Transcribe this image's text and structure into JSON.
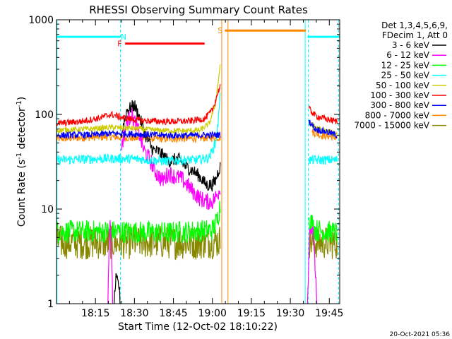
{
  "chart_data": {
    "type": "line",
    "title": "RHESSI Observing Summary Count Rates",
    "xlabel": "Start Time (12-Oct-02 18:10:22)",
    "ylabel_main": "Count Rate (s",
    "ylabel_sup": "-1",
    "ylabel_tail": " detector",
    "ylabel_close": ")",
    "yscale": "log",
    "ylim": [
      1,
      1000
    ],
    "xlim_minutes": [
      18.0,
      19.8167
    ],
    "x_ticks": [
      {
        "label": "18:15",
        "value": 18.25
      },
      {
        "label": "18:30",
        "value": 18.5
      },
      {
        "label": "18:45",
        "value": 18.75
      },
      {
        "label": "19:00",
        "value": 19.0
      },
      {
        "label": "19:15",
        "value": 19.25
      },
      {
        "label": "19:30",
        "value": 19.5
      },
      {
        "label": "19:45",
        "value": 19.75
      }
    ],
    "y_ticks": [
      {
        "label": "1",
        "value": 1
      },
      {
        "label": "10",
        "value": 10
      },
      {
        "label": "100",
        "value": 100
      },
      {
        "label": "1000",
        "value": 1000
      }
    ],
    "legend": {
      "header1": "Det 1,3,4,5,6,9,",
      "header2": "FDecim 1, Att 0",
      "entries": [
        {
          "label": "3 - 6 keV",
          "color": "#000000"
        },
        {
          "label": "6 - 12 keV",
          "color": "#ff00ff"
        },
        {
          "label": "12 - 25 keV",
          "color": "#00ff00"
        },
        {
          "label": "25 - 50 keV",
          "color": "#00ffff"
        },
        {
          "label": "50 - 100 keV",
          "color": "#cccc00"
        },
        {
          "label": "100 - 300 keV",
          "color": "#ff0000"
        },
        {
          "label": "300 - 800 keV",
          "color": "#0000ff"
        },
        {
          "label": "800 - 7000 keV",
          "color": "#ff8800"
        },
        {
          "label": "7000 - 15000 keV",
          "color": "#888800"
        }
      ]
    },
    "flags": [
      {
        "label": "N",
        "color": "#00ffff",
        "start": 18.0,
        "end": 18.41,
        "level": 660,
        "label_at": 18.43
      },
      {
        "label": "N",
        "color": "#00ffff",
        "start": 19.61,
        "end": 19.82,
        "level": 660,
        "label_at": null
      },
      {
        "label": "F",
        "color": "#ff0000",
        "start": 18.44,
        "end": 18.95,
        "level": 560,
        "label_at": 18.405
      },
      {
        "label": "S",
        "color": "#ff8800",
        "start": 19.08,
        "end": 19.6,
        "level": 770,
        "label_at": 19.05
      }
    ],
    "markers": [
      {
        "value": 18.41,
        "color": "#00ffff",
        "dash": true
      },
      {
        "value": 18.003,
        "color": "#00ffff",
        "dash": false
      },
      {
        "value": 19.06,
        "color": "#ff8800",
        "dash": false
      },
      {
        "value": 19.1,
        "color": "#ff8800",
        "dash": false
      },
      {
        "value": 19.595,
        "color": "#00ffff",
        "dash": false
      },
      {
        "value": 19.615,
        "color": "#00ffff",
        "dash": true
      },
      {
        "value": 19.81,
        "color": "#00ffff",
        "dash": true
      }
    ],
    "series": [
      {
        "name": "800 - 7000 keV",
        "color": "#ff8800",
        "noise": 0.04,
        "segments": [
          [
            [
              18.0,
              55
            ],
            [
              18.2,
              57
            ],
            [
              18.35,
              58
            ],
            [
              18.5,
              56
            ],
            [
              18.7,
              55
            ],
            [
              18.9,
              56
            ],
            [
              19.05,
              57
            ]
          ],
          [
            [
              19.64,
              65
            ],
            [
              19.7,
              60
            ],
            [
              19.8,
              57
            ]
          ]
        ]
      },
      {
        "name": "7000 - 15000 keV",
        "color": "#888800",
        "noise": 0.18,
        "segments": [
          [
            [
              18.0,
              4.5
            ],
            [
              18.3,
              4.4
            ],
            [
              18.6,
              4.5
            ],
            [
              18.9,
              4.4
            ],
            [
              19.05,
              4.6
            ]
          ],
          [
            [
              19.62,
              4.5
            ],
            [
              19.8,
              4.4
            ]
          ]
        ]
      },
      {
        "name": "12 - 25 keV",
        "color": "#00ff00",
        "noise": 0.12,
        "segments": [
          [
            [
              18.0,
              5.8
            ],
            [
              18.4,
              5.8
            ],
            [
              18.7,
              5.6
            ],
            [
              19.0,
              6.0
            ],
            [
              19.03,
              7.5
            ],
            [
              19.05,
              11
            ]
          ],
          [
            [
              19.62,
              8
            ],
            [
              19.66,
              6
            ],
            [
              19.8,
              5.6
            ]
          ]
        ]
      },
      {
        "name": "3 - 6 keV",
        "color": "#000000",
        "noise": 0.07,
        "segments": [
          [
            [
              18.37,
              1.0
            ],
            [
              18.38,
              1.8
            ],
            [
              18.4,
              1.6
            ],
            [
              18.41,
              1.0
            ]
          ],
          [
            [
              18.415,
              60
            ],
            [
              18.45,
              110
            ],
            [
              18.5,
              125
            ],
            [
              18.53,
              95
            ],
            [
              18.58,
              55
            ],
            [
              18.62,
              42
            ],
            [
              18.66,
              40
            ],
            [
              18.72,
              32
            ],
            [
              18.78,
              34
            ],
            [
              18.83,
              28
            ],
            [
              18.88,
              25
            ],
            [
              18.92,
              22
            ],
            [
              18.96,
              18
            ],
            [
              19.0,
              18
            ],
            [
              19.02,
              20
            ],
            [
              19.04,
              26
            ],
            [
              19.05,
              28
            ]
          ]
        ]
      },
      {
        "name": "6 - 12 keV",
        "color": "#ff00ff",
        "noise": 0.09,
        "segments": [
          [
            [
              18.33,
              1.0
            ],
            [
              18.34,
              6.5
            ],
            [
              18.35,
              6.5
            ],
            [
              18.36,
              1.0
            ]
          ],
          [
            [
              18.415,
              45
            ],
            [
              18.45,
              80
            ],
            [
              18.48,
              100
            ],
            [
              18.52,
              72
            ],
            [
              18.56,
              42
            ],
            [
              18.6,
              33
            ],
            [
              18.64,
              24
            ],
            [
              18.68,
              20
            ],
            [
              18.72,
              24
            ],
            [
              18.76,
              22
            ],
            [
              18.8,
              21
            ],
            [
              18.84,
              18
            ],
            [
              18.88,
              15
            ],
            [
              18.92,
              13
            ],
            [
              18.96,
              12
            ],
            [
              19.0,
              12
            ],
            [
              19.03,
              14
            ],
            [
              19.05,
              17
            ]
          ],
          [
            [
              19.61,
              1.0
            ],
            [
              19.625,
              7
            ],
            [
              19.65,
              5
            ],
            [
              19.67,
              1.0
            ]
          ]
        ]
      },
      {
        "name": "25 - 50 keV",
        "color": "#00ffff",
        "noise": 0.05,
        "segments": [
          [
            [
              18.0,
              33
            ],
            [
              18.3,
              34
            ],
            [
              18.5,
              34
            ],
            [
              18.6,
              33
            ],
            [
              18.7,
              32
            ],
            [
              18.8,
              33
            ],
            [
              18.9,
              33
            ],
            [
              18.98,
              35
            ],
            [
              19.02,
              50
            ],
            [
              19.04,
              90
            ],
            [
              19.05,
              180
            ]
          ],
          [
            [
              19.62,
              33
            ],
            [
              19.8,
              33
            ]
          ]
        ]
      },
      {
        "name": "50 - 100 keV",
        "color": "#cccc00",
        "noise": 0.03,
        "segments": [
          [
            [
              18.0,
              68
            ],
            [
              18.2,
              70
            ],
            [
              18.35,
              73
            ],
            [
              18.5,
              71
            ],
            [
              18.65,
              68
            ],
            [
              18.8,
              67
            ],
            [
              18.92,
              68
            ],
            [
              18.98,
              80
            ],
            [
              19.02,
              130
            ],
            [
              19.05,
              330
            ]
          ],
          [
            [
              19.62,
              80
            ],
            [
              19.7,
              68
            ],
            [
              19.8,
              63
            ]
          ]
        ]
      },
      {
        "name": "300 - 800 keV",
        "color": "#0000ff",
        "noise": 0.035,
        "segments": [
          [
            [
              18.0,
              60
            ],
            [
              18.25,
              61
            ],
            [
              18.35,
              63
            ],
            [
              18.5,
              62
            ],
            [
              18.7,
              60
            ],
            [
              18.9,
              60
            ],
            [
              19.05,
              61
            ]
          ],
          [
            [
              19.62,
              85
            ],
            [
              19.66,
              70
            ],
            [
              19.74,
              65
            ],
            [
              19.8,
              60
            ]
          ]
        ]
      },
      {
        "name": "100 - 300 keV",
        "color": "#ff0000",
        "noise": 0.035,
        "segments": [
          [
            [
              18.0,
              80
            ],
            [
              18.15,
              84
            ],
            [
              18.28,
              92
            ],
            [
              18.35,
              100
            ],
            [
              18.43,
              92
            ],
            [
              18.55,
              86
            ],
            [
              18.7,
              84
            ],
            [
              18.85,
              85
            ],
            [
              18.95,
              90
            ],
            [
              19.0,
              110
            ],
            [
              19.03,
              160
            ],
            [
              19.05,
              200
            ]
          ],
          [
            [
              19.62,
              115
            ],
            [
              19.66,
              97
            ],
            [
              19.72,
              90
            ],
            [
              19.8,
              84
            ]
          ]
        ]
      }
    ]
  },
  "footer": {
    "timestamp": "20-Oct-2021 05:36"
  }
}
